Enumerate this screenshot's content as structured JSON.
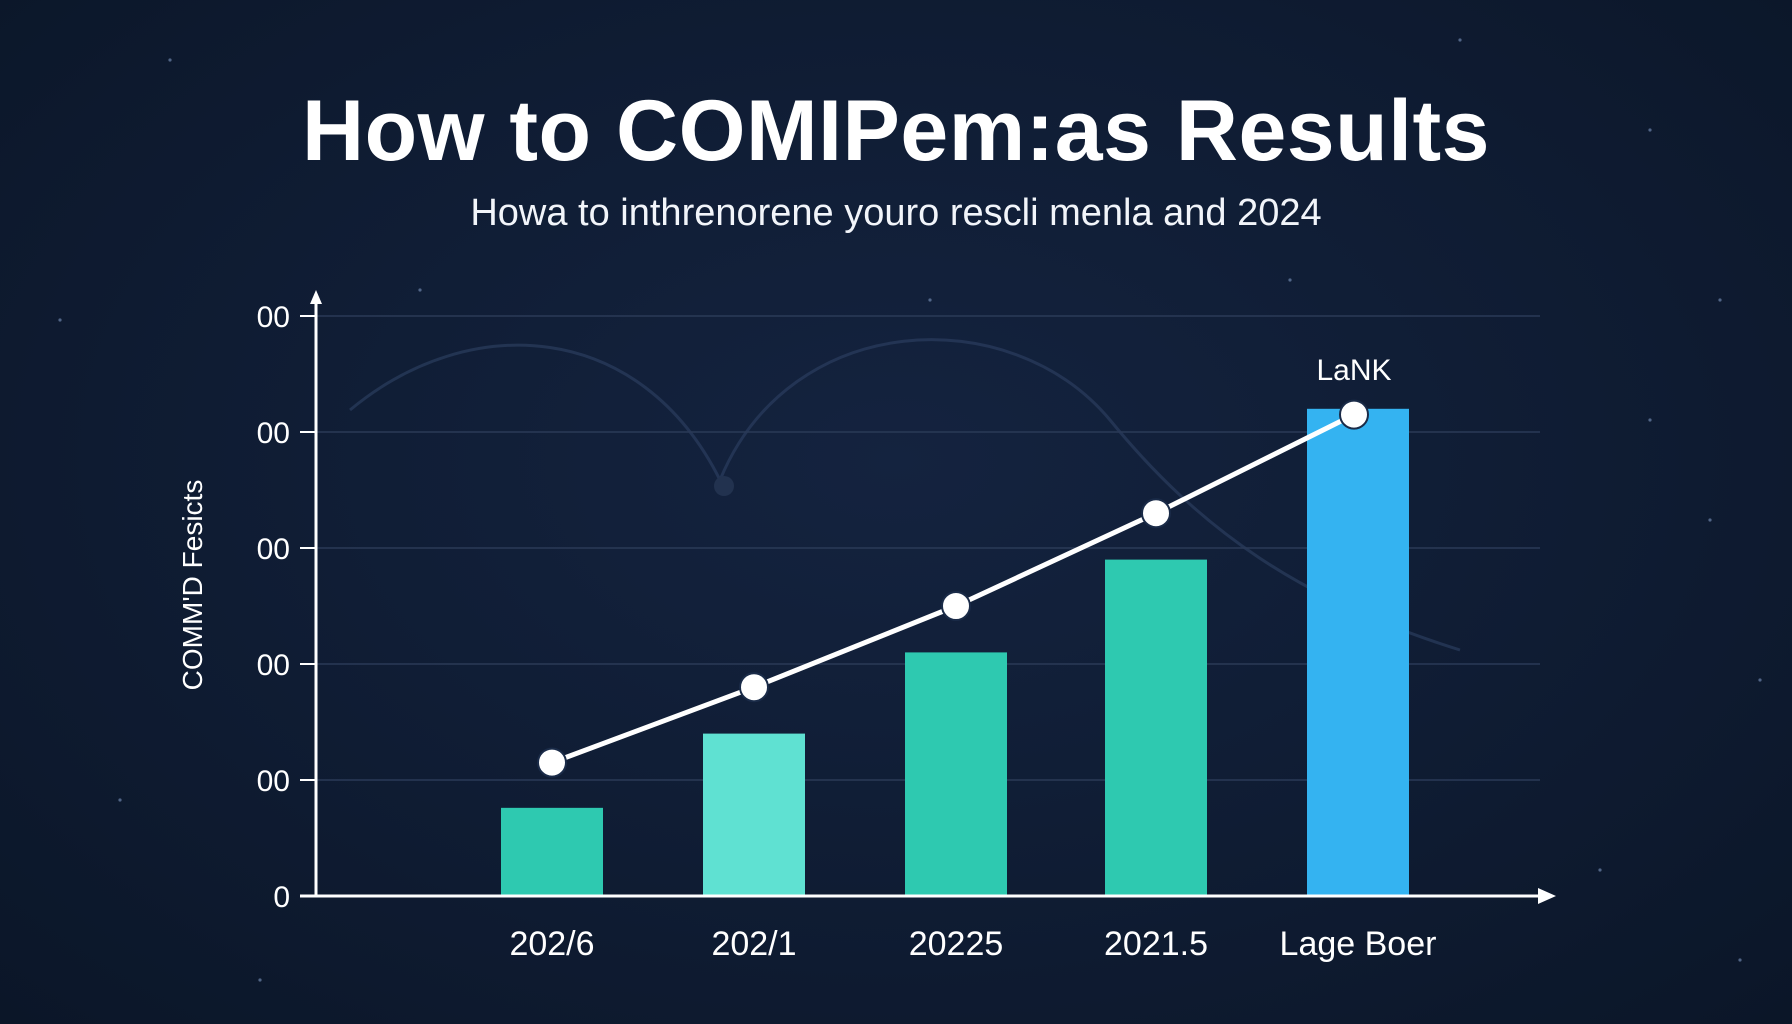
{
  "chart_data": {
    "type": "bar",
    "title": "How to COMIPem:as Results",
    "subtitle": "Howa to inthrenorene youro rescli menla and 2024",
    "ylabel": "COMM'D Fesicts",
    "xlabel": "",
    "categories": [
      "202/6",
      "202/1",
      "20225",
      "2021.5",
      "Lage Boer"
    ],
    "yticks": [
      "0",
      "00",
      "00",
      "00",
      "00",
      "00"
    ],
    "ylim": [
      0,
      5
    ],
    "series": [
      {
        "values": [
          0.76,
          1.4,
          2.1,
          2.9,
          4.2
        ]
      },
      {
        "values": [
          1.15,
          1.8,
          2.5,
          3.3,
          4.15
        ]
      }
    ],
    "annotations": [
      {
        "text": "LaNK",
        "category": "Lage Boer"
      }
    ],
    "grid": true,
    "colors": {
      "bar": "#2ec9b0",
      "bar_light": "#5fe1d2",
      "bar_highlight": "#34b3f1",
      "line": "#ffffff",
      "grid": "#2a3a57",
      "axis": "#ffffff"
    }
  }
}
